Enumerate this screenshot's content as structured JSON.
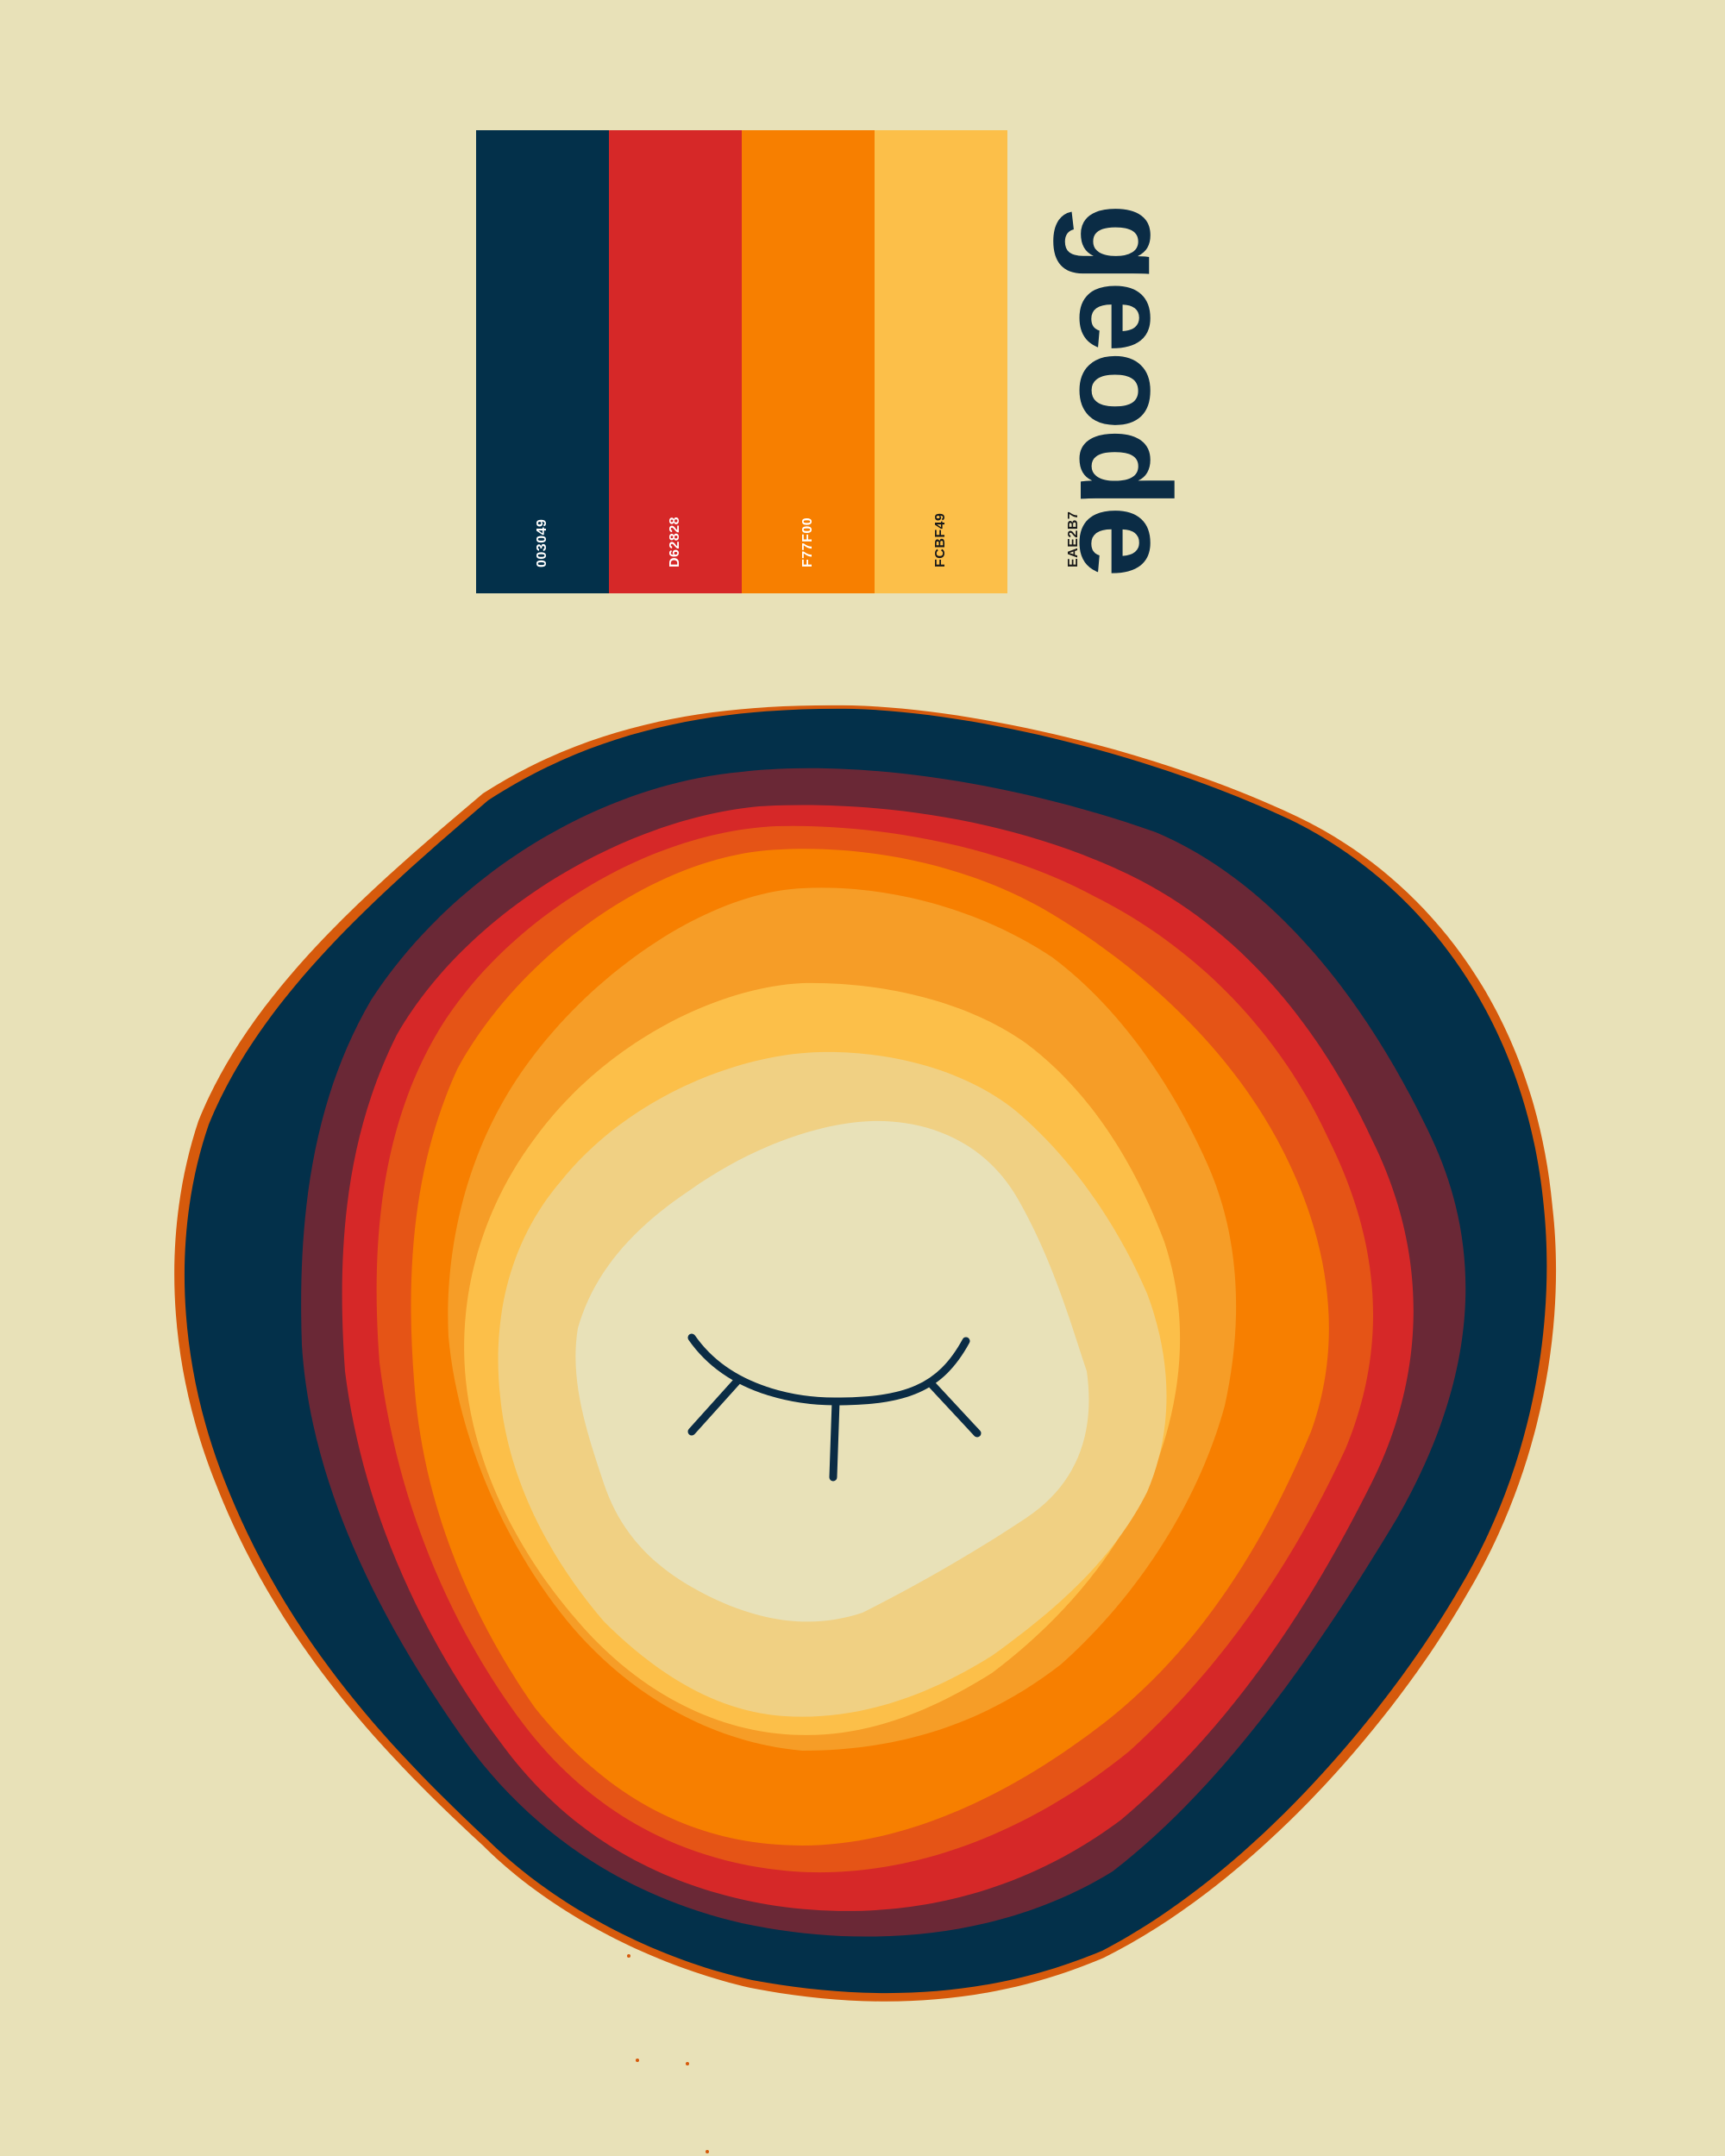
{
  "title": "geode",
  "palette": [
    {
      "code": "003049",
      "color": "#03304A",
      "text_color": "#FFFFFF"
    },
    {
      "code": "D62828",
      "color": "#D62828",
      "text_color": "#FFFFFF"
    },
    {
      "code": "F77F00",
      "color": "#F77F00",
      "text_color": "#FFFFFF"
    },
    {
      "code": "FCBF49",
      "color": "#FCBF49",
      "text_color": "#1A1A1A"
    },
    {
      "code": "EAE2B7",
      "color": "#EAE2B7",
      "text_color": "#1A1A1A"
    }
  ],
  "colors": {
    "background": "#E8E1B8",
    "outer_rim": "#D65A0C",
    "navy": "#03304A",
    "maroon": "#6A2836",
    "red": "#D62828",
    "red_orange": "#E55416",
    "orange": "#F77F00",
    "light_orange": "#F69D27",
    "yellow": "#FCBF49",
    "pale_yellow": "#F0D083",
    "cream": "#E8E1B8",
    "eye_stroke": "#0B2C45"
  },
  "illustration": {
    "name": "closed-eye",
    "icon": "closed-eye-icon"
  }
}
